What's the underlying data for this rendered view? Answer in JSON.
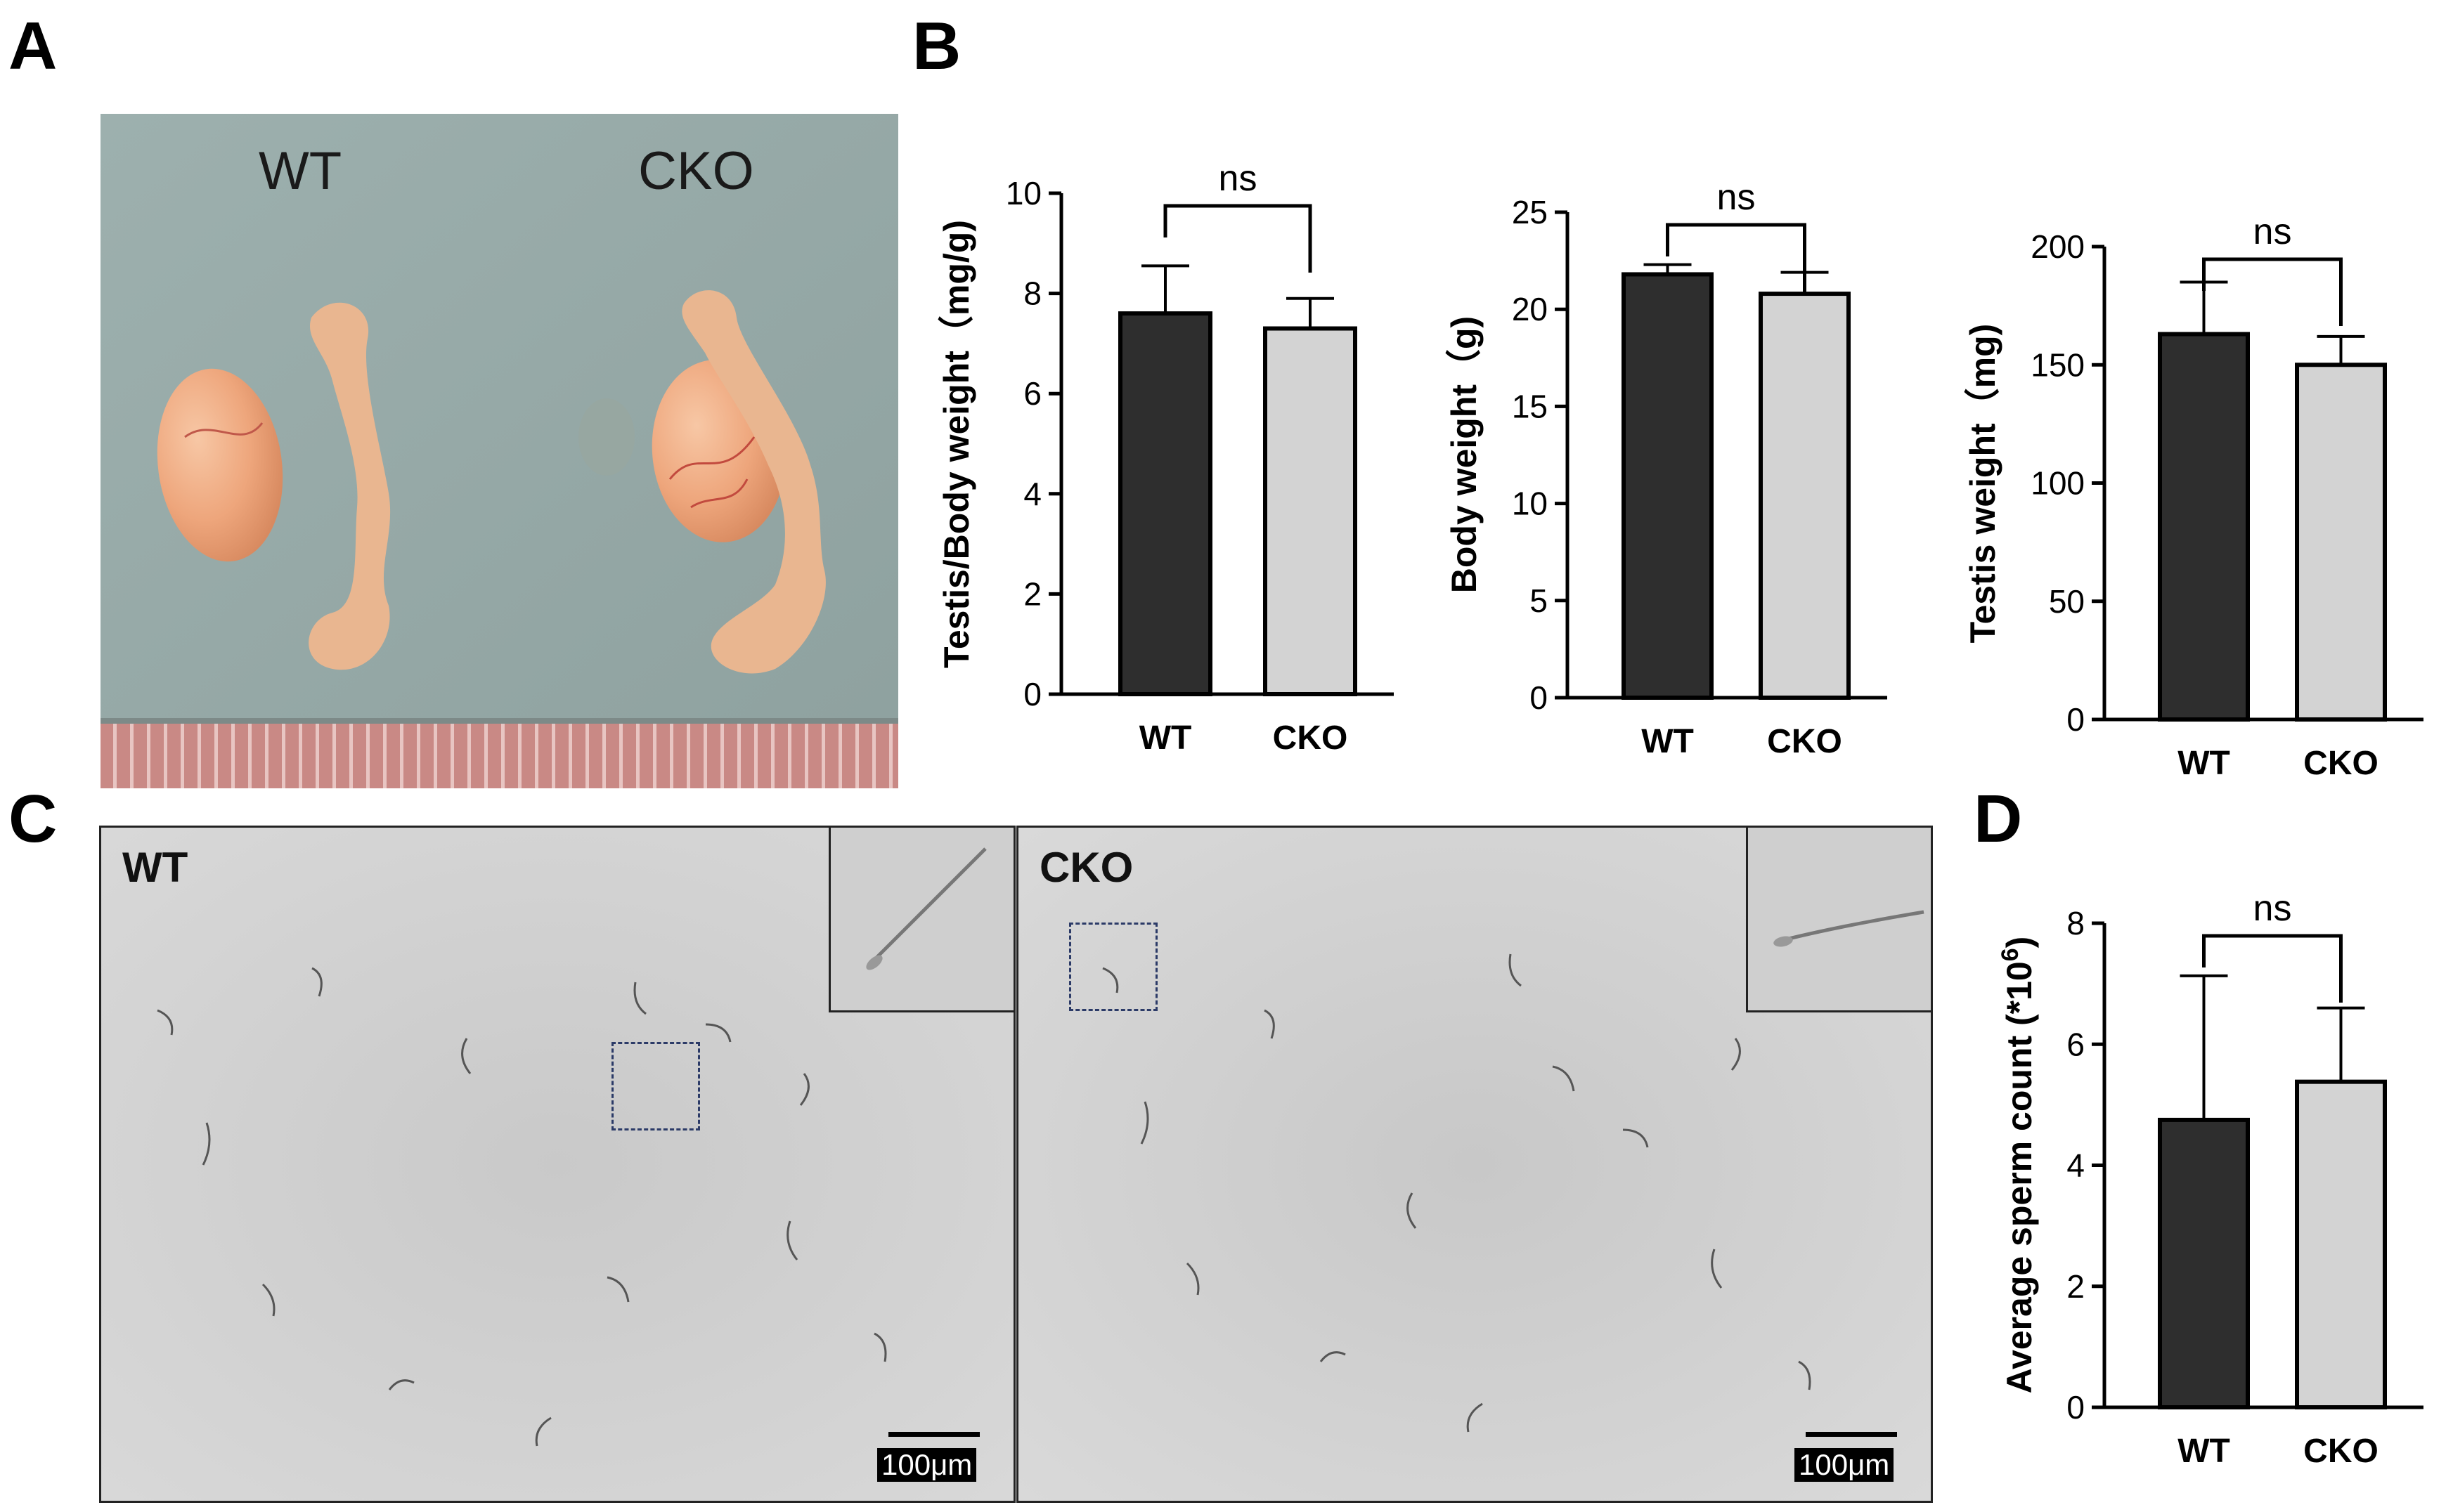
{
  "panel_letters": {
    "a": "A",
    "b": "B",
    "c": "C",
    "d": "D"
  },
  "photo": {
    "label_wt": "WT",
    "label_cko": "CKO"
  },
  "colors": {
    "wt_bar": "#2e2e2e",
    "cko_bar": "#d3d3d3",
    "axis": "#000000"
  },
  "chart_data": [
    {
      "id": "b1",
      "type": "bar",
      "title": "",
      "categories": [
        "WT",
        "CKO"
      ],
      "values": [
        7.6,
        7.3
      ],
      "errors": [
        0.95,
        0.6
      ],
      "ylabel": "Testis/Body weight（mg/g)",
      "xlabel": "",
      "ylim": [
        0,
        10
      ],
      "yticks": [
        "0",
        "2",
        "4",
        "6",
        "8",
        "10"
      ],
      "sig": "ns"
    },
    {
      "id": "b2",
      "type": "bar",
      "title": "",
      "categories": [
        "WT",
        "CKO"
      ],
      "values": [
        21.8,
        20.8
      ],
      "errors": [
        0.5,
        1.1
      ],
      "ylabel": "Body weight（g)",
      "xlabel": "",
      "ylim": [
        0,
        25
      ],
      "yticks": [
        "0",
        "5",
        "10",
        "15",
        "20",
        "25"
      ],
      "sig": "ns"
    },
    {
      "id": "b3",
      "type": "bar",
      "title": "",
      "categories": [
        "WT",
        "CKO"
      ],
      "values": [
        163,
        150
      ],
      "errors": [
        22,
        12
      ],
      "ylabel": "Testis weight（mg)",
      "xlabel": "",
      "ylim": [
        0,
        200
      ],
      "yticks": [
        "0",
        "50",
        "100",
        "150",
        "200"
      ],
      "sig": "ns"
    },
    {
      "id": "d",
      "type": "bar",
      "title": "",
      "categories": [
        "WT",
        "CKO"
      ],
      "values": [
        4.75,
        5.38
      ],
      "errors": [
        2.38,
        1.22
      ],
      "ylabel": "Average sperm count (*10",
      "ylabel_sup": "6",
      "ylabel_end": ")",
      "xlabel": "",
      "ylim": [
        0,
        8
      ],
      "yticks": [
        "0",
        "2",
        "4",
        "6",
        "8"
      ],
      "sig": "ns"
    }
  ],
  "micrographs": {
    "wt": {
      "label": "WT",
      "scale": "100μm"
    },
    "cko": {
      "label": "CKO",
      "scale": "100μm"
    }
  }
}
